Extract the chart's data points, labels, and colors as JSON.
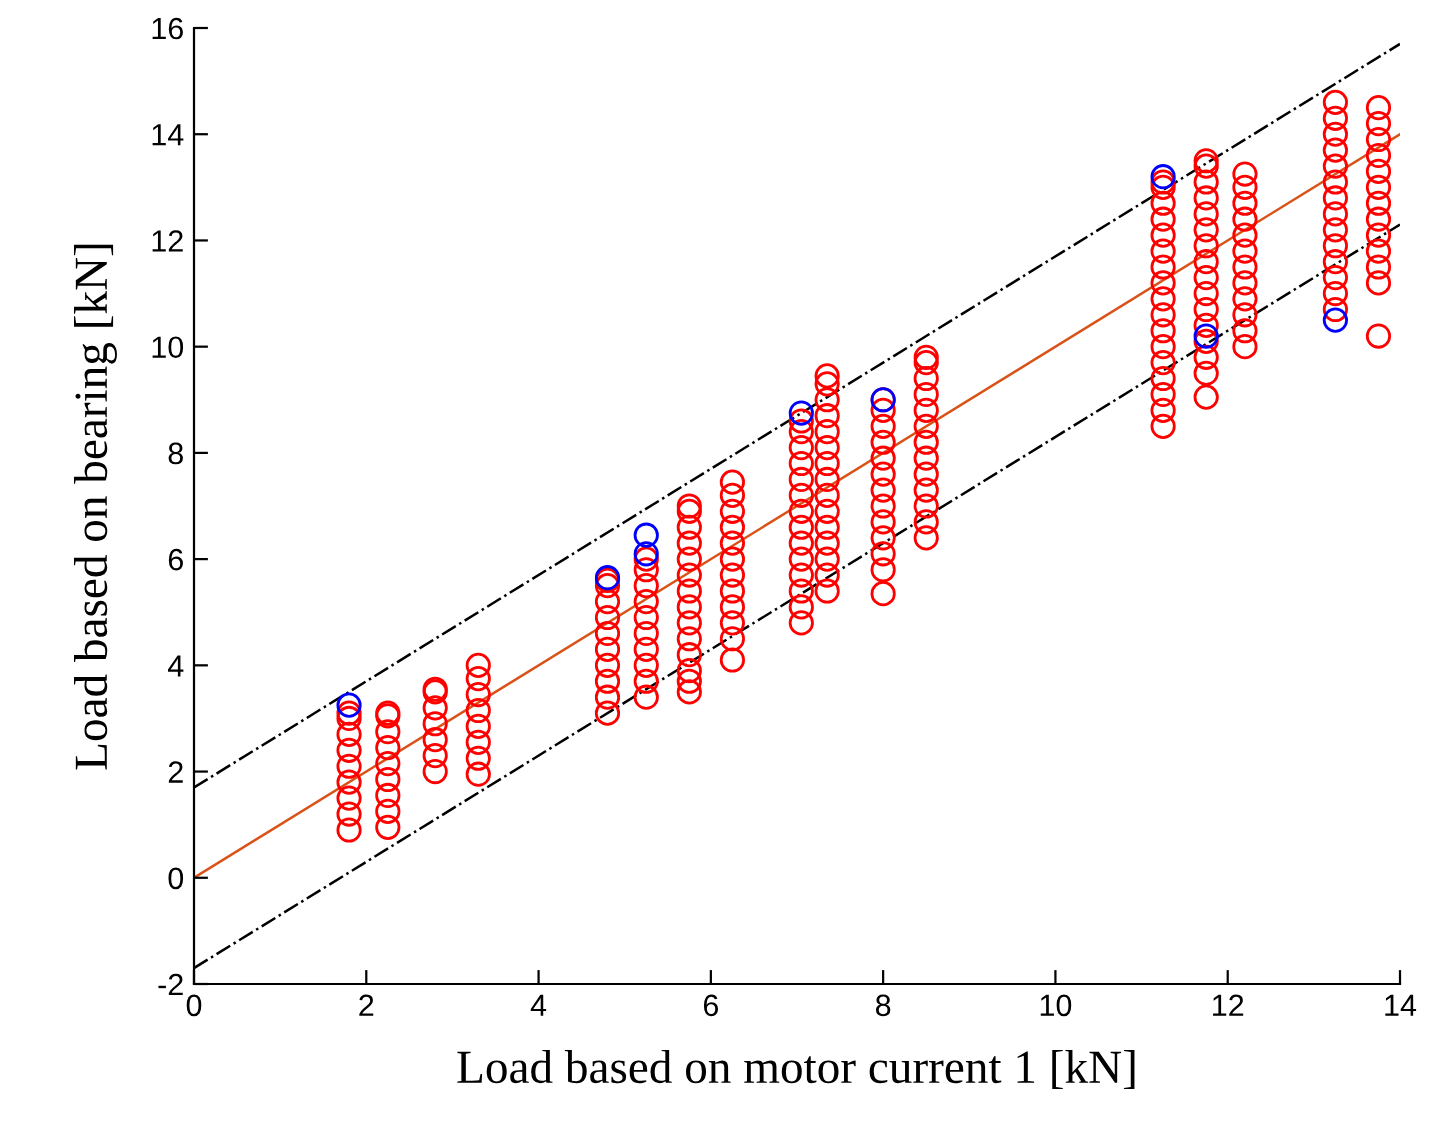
{
  "chart_data": {
    "type": "scatter",
    "xlabel": "Load based on motor current 1 [kN]",
    "ylabel": "Load based on bearing [kN]",
    "xlim": [
      0,
      14
    ],
    "xticks": [
      0,
      2,
      4,
      6,
      8,
      10,
      12,
      14
    ],
    "ylim": [
      -2,
      16
    ],
    "yticks": [
      -2,
      0,
      2,
      4,
      6,
      8,
      10,
      12,
      14,
      16
    ],
    "grid": false,
    "marker": "circle",
    "series": [
      {
        "type": "line",
        "color": "#000000",
        "line_style": "dashdot",
        "marker": "none",
        "x": [
          0,
          14
        ],
        "values": [
          1.7,
          15.7
        ]
      },
      {
        "type": "line",
        "color": "#000000",
        "line_style": "dashdot",
        "marker": "none",
        "x": [
          0,
          14
        ],
        "values": [
          -1.7,
          12.3
        ]
      },
      {
        "type": "line",
        "color": "#d95319",
        "line_style": "solid",
        "marker": "none",
        "x": [
          0,
          14
        ],
        "values": [
          0,
          14
        ]
      },
      {
        "color": "#ff0000",
        "x": [
          1.8,
          1.8,
          1.8,
          1.8,
          1.8,
          1.8,
          1.8,
          1.8,
          1.8,
          2.25,
          2.25,
          2.25,
          2.25,
          2.25,
          2.25,
          2.25,
          2.25,
          2.25,
          2.8,
          2.8,
          2.8,
          2.8,
          2.8,
          2.8,
          2.8,
          3.3,
          3.3,
          3.3,
          3.3,
          3.3,
          3.3,
          3.3,
          3.3,
          4.8,
          4.8,
          4.8,
          4.8,
          4.8,
          4.8,
          4.8,
          4.8,
          4.8,
          4.8,
          5.25,
          5.25,
          5.25,
          5.25,
          5.25,
          5.25,
          5.25,
          5.25,
          5.25,
          5.25,
          5.75,
          5.75,
          5.75,
          5.75,
          5.75,
          5.75,
          5.75,
          5.75,
          5.75,
          5.75,
          5.75,
          5.75,
          5.75,
          5.75,
          6.25,
          6.25,
          6.25,
          6.25,
          6.25,
          6.25,
          6.25,
          6.25,
          6.25,
          6.25,
          6.25,
          6.25,
          7.05,
          7.05,
          7.05,
          7.05,
          7.05,
          7.05,
          7.05,
          7.05,
          7.05,
          7.05,
          7.05,
          7.05,
          7.05,
          7.05,
          7.35,
          7.35,
          7.35,
          7.35,
          7.35,
          7.35,
          7.35,
          7.35,
          7.35,
          7.35,
          7.35,
          7.35,
          7.35,
          7.35,
          7.35,
          8.0,
          8.0,
          8.0,
          8.0,
          8.0,
          8.0,
          8.0,
          8.0,
          8.0,
          8.0,
          8.0,
          8.0,
          8.0,
          8.5,
          8.5,
          8.5,
          8.5,
          8.5,
          8.5,
          8.5,
          8.5,
          8.5,
          8.5,
          8.5,
          8.5,
          8.5,
          11.25,
          11.25,
          11.25,
          11.25,
          11.25,
          11.25,
          11.25,
          11.25,
          11.25,
          11.25,
          11.25,
          11.25,
          11.25,
          11.25,
          11.25,
          11.25,
          11.25,
          11.75,
          11.75,
          11.75,
          11.75,
          11.75,
          11.75,
          11.75,
          11.75,
          11.75,
          11.75,
          11.75,
          11.75,
          11.75,
          11.75,
          11.75,
          11.75,
          12.2,
          12.2,
          12.2,
          12.2,
          12.2,
          12.2,
          12.2,
          12.2,
          12.2,
          12.2,
          12.2,
          12.2,
          13.25,
          13.25,
          13.25,
          13.25,
          13.25,
          13.25,
          13.25,
          13.25,
          13.25,
          13.25,
          13.25,
          13.25,
          13.25,
          13.25,
          13.75,
          13.75,
          13.75,
          13.75,
          13.75,
          13.75,
          13.75,
          13.75,
          13.75,
          13.75,
          13.75,
          13.75,
          13.75
        ],
        "values": [
          0.9,
          1.2,
          1.5,
          1.8,
          2.1,
          2.4,
          2.7,
          3.0,
          3.1,
          0.95,
          1.25,
          1.55,
          1.85,
          2.15,
          2.45,
          2.75,
          3.05,
          3.1,
          2.0,
          2.3,
          2.6,
          2.9,
          3.2,
          3.5,
          3.55,
          1.95,
          2.25,
          2.55,
          2.85,
          3.15,
          3.45,
          3.75,
          4.0,
          3.1,
          3.4,
          3.7,
          4.0,
          4.3,
          4.6,
          4.9,
          5.2,
          5.5,
          5.6,
          3.4,
          3.7,
          4.0,
          4.3,
          4.6,
          4.9,
          5.2,
          5.5,
          5.8,
          6.0,
          3.5,
          3.7,
          3.9,
          4.2,
          4.5,
          4.8,
          5.1,
          5.4,
          5.7,
          6.0,
          6.3,
          6.6,
          6.9,
          7.0,
          4.1,
          4.5,
          4.8,
          5.1,
          5.4,
          5.7,
          6.0,
          6.3,
          6.6,
          6.9,
          7.2,
          7.45,
          4.8,
          5.1,
          5.4,
          5.7,
          6.0,
          6.3,
          6.6,
          6.9,
          7.2,
          7.5,
          7.8,
          8.1,
          8.4,
          8.6,
          5.4,
          5.7,
          6.0,
          6.3,
          6.6,
          6.9,
          7.2,
          7.5,
          7.8,
          8.1,
          8.4,
          8.7,
          9.0,
          9.3,
          9.45,
          5.35,
          5.8,
          6.1,
          6.4,
          6.7,
          7.0,
          7.3,
          7.6,
          7.9,
          8.2,
          8.5,
          8.8,
          9.0,
          6.4,
          6.7,
          7.0,
          7.3,
          7.6,
          7.9,
          8.2,
          8.5,
          8.8,
          9.1,
          9.4,
          9.7,
          9.8,
          8.5,
          8.8,
          9.1,
          9.4,
          9.7,
          10.0,
          10.3,
          10.6,
          10.9,
          11.2,
          11.5,
          11.8,
          12.1,
          12.4,
          12.7,
          13.0,
          13.1,
          9.05,
          9.5,
          9.8,
          10.1,
          10.4,
          10.7,
          11.0,
          11.3,
          11.6,
          11.9,
          12.2,
          12.5,
          12.8,
          13.1,
          13.4,
          13.5,
          10.0,
          10.3,
          10.6,
          10.9,
          11.2,
          11.5,
          11.8,
          12.1,
          12.4,
          12.7,
          13.0,
          13.25,
          10.7,
          11.0,
          11.3,
          11.6,
          11.9,
          12.2,
          12.5,
          12.8,
          13.1,
          13.4,
          13.7,
          14.0,
          14.3,
          14.6,
          10.2,
          11.2,
          11.5,
          11.8,
          12.1,
          12.4,
          12.7,
          13.0,
          13.3,
          13.6,
          13.9,
          14.2,
          14.5
        ]
      },
      {
        "color": "#0000ff",
        "x": [
          1.8,
          4.8,
          5.25,
          5.25,
          7.05,
          8.0,
          11.25,
          11.75,
          13.25
        ],
        "values": [
          3.25,
          5.65,
          6.1,
          6.45,
          8.75,
          9.0,
          13.2,
          10.2,
          10.5
        ]
      }
    ]
  }
}
